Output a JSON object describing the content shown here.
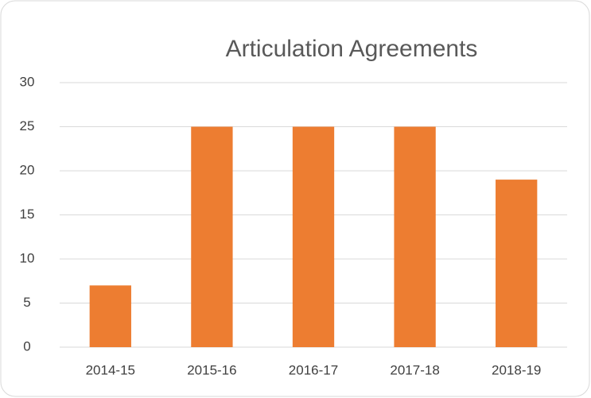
{
  "chart_data": {
    "type": "bar",
    "title": "Articulation Agreements",
    "categories": [
      "2014-15",
      "2015-16",
      "2016-17",
      "2017-18",
      "2018-19"
    ],
    "values": [
      7,
      25,
      25,
      25,
      19
    ],
    "color": "#ed7d31",
    "ylim": [
      0,
      30
    ],
    "yticks": [
      0,
      5,
      10,
      15,
      20,
      25,
      30
    ],
    "grid": true
  }
}
